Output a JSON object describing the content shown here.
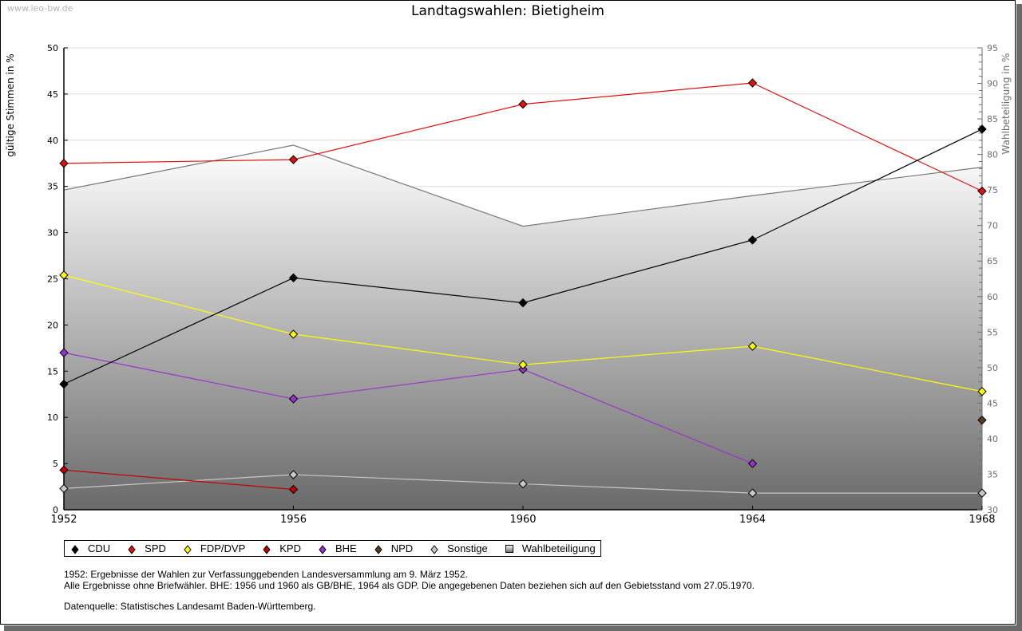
{
  "watermark": "www.leo-bw.de",
  "title": "Landtagswahlen: Bietigheim",
  "legend": [
    {
      "label": "CDU",
      "color": "#000000",
      "shape": "diamond"
    },
    {
      "label": "SPD",
      "color": "#e01010",
      "shape": "diamond"
    },
    {
      "label": "FDP/DVP",
      "color": "#ffff00",
      "shape": "diamond"
    },
    {
      "label": "KPD",
      "color": "#c00000",
      "shape": "diamond"
    },
    {
      "label": "BHE",
      "color": "#9933cc",
      "shape": "diamond"
    },
    {
      "label": "NPD",
      "color": "#5a3a22",
      "shape": "diamond"
    },
    {
      "label": "Sonstige",
      "color": "#c8c8c8",
      "shape": "diamond"
    },
    {
      "label": "Wahlbeteiligung",
      "color": "#a0a0a0",
      "shape": "square"
    }
  ],
  "notes": {
    "line1": "1952: Ergebnisse der Wahlen zur Verfassunggebenden Landesversammlung am 9. März 1952.",
    "line2": "Alle Ergebnisse ohne Briefwähler. BHE: 1956 und 1960 als GB/BHE, 1964 als GDP. Die angegebenen Daten beziehen sich auf den Gebietsstand vom 27.05.1970.",
    "line3": "Datenquelle: Statistisches Landesamt Baden-Württemberg."
  },
  "chart_data": {
    "type": "line",
    "title": "Landtagswahlen: Bietigheim",
    "xlabel": "",
    "ylabel": "gültige Stimmen in %",
    "y2label": "Wahlbeteiligung in %",
    "x": [
      1952,
      1956,
      1960,
      1964,
      1968
    ],
    "xticks": [
      "1952",
      "1956",
      "1960",
      "1964",
      "1968"
    ],
    "ylim": [
      0,
      50
    ],
    "yticks": [
      "0",
      "5",
      "10",
      "15",
      "20",
      "25",
      "30",
      "35",
      "40",
      "45",
      "50"
    ],
    "y2lim": [
      30,
      95
    ],
    "y2ticks": [
      "30",
      "35",
      "40",
      "45",
      "50",
      "55",
      "60",
      "65",
      "70",
      "75",
      "80",
      "85",
      "90",
      "95"
    ],
    "grid": true,
    "legend_position": "bottom",
    "series": [
      {
        "name": "CDU",
        "color": "#000000",
        "axis": "left",
        "values": [
          13.6,
          25.1,
          22.4,
          29.2,
          41.2
        ]
      },
      {
        "name": "SPD",
        "color": "#e01010",
        "axis": "left",
        "values": [
          37.5,
          37.9,
          43.9,
          46.2,
          34.5
        ]
      },
      {
        "name": "FDP/DVP",
        "color": "#ffff00",
        "axis": "left",
        "values": [
          25.4,
          19.0,
          15.7,
          17.7,
          12.8
        ]
      },
      {
        "name": "KPD",
        "color": "#c00000",
        "axis": "left",
        "values": [
          4.3,
          2.2,
          null,
          null,
          null
        ]
      },
      {
        "name": "BHE",
        "color": "#9933cc",
        "axis": "left",
        "values": [
          17.0,
          12.0,
          15.2,
          5.0,
          null
        ]
      },
      {
        "name": "NPD",
        "color": "#5a3a22",
        "axis": "left",
        "values": [
          null,
          null,
          null,
          null,
          9.7
        ]
      },
      {
        "name": "Sonstige",
        "color": "#c8c8c8",
        "axis": "left",
        "values": [
          2.3,
          3.8,
          2.8,
          1.8,
          1.8
        ]
      },
      {
        "name": "Wahlbeteiligung",
        "color": "#808080",
        "axis": "right",
        "type": "area",
        "values": [
          75.0,
          81.3,
          69.9,
          74.2,
          78.2
        ]
      }
    ]
  }
}
